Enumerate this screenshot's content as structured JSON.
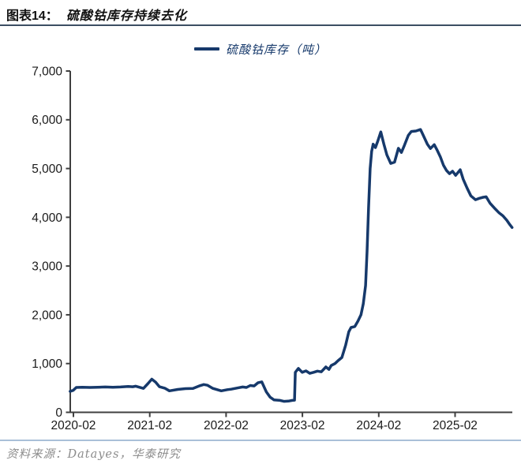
{
  "header": {
    "label": "图表14：",
    "title": "硫酸钴库存持续去化"
  },
  "legend": {
    "label": "硫酸钴库存（吨）"
  },
  "footer": {
    "source": "资料来源：Datayes，华泰研究"
  },
  "colors": {
    "line": "#16396b",
    "axis": "#3f3f3f",
    "tick_label": "#1a1a1a",
    "title_rule": "#3c4e63",
    "footer_rule": "#a9c0d8",
    "source_text": "#8c8c8c"
  },
  "chart_data": {
    "type": "line",
    "title": "硫酸钴库存持续去化",
    "legend": "硫酸钴库存（吨）",
    "unit": "吨",
    "grid": false,
    "legend_position": "top-center",
    "ylim": [
      0,
      7000
    ],
    "y_ticks": [
      {
        "value": 0,
        "label": "0"
      },
      {
        "value": 1000,
        "label": "1,000"
      },
      {
        "value": 2000,
        "label": "2,000"
      },
      {
        "value": 3000,
        "label": "3,000"
      },
      {
        "value": 4000,
        "label": "4,000"
      },
      {
        "value": 5000,
        "label": "5,000"
      },
      {
        "value": 6000,
        "label": "6,000"
      },
      {
        "value": 7000,
        "label": "7,000"
      }
    ],
    "x_ticks": [
      {
        "year": 2020.083,
        "label": "2020-02"
      },
      {
        "year": 2021.083,
        "label": "2021-02"
      },
      {
        "year": 2022.083,
        "label": "2022-02"
      },
      {
        "year": 2023.083,
        "label": "2023-02"
      },
      {
        "year": 2024.083,
        "label": "2024-02"
      },
      {
        "year": 2025.083,
        "label": "2025-02"
      }
    ],
    "series": [
      {
        "name": "硫酸钴库存（吨）",
        "points": [
          [
            2020.04,
            430
          ],
          [
            2020.08,
            450
          ],
          [
            2020.12,
            510
          ],
          [
            2020.2,
            515
          ],
          [
            2020.3,
            510
          ],
          [
            2020.4,
            515
          ],
          [
            2020.5,
            520
          ],
          [
            2020.6,
            515
          ],
          [
            2020.7,
            520
          ],
          [
            2020.8,
            530
          ],
          [
            2020.86,
            525
          ],
          [
            2020.9,
            535
          ],
          [
            2021.0,
            490
          ],
          [
            2021.06,
            590
          ],
          [
            2021.11,
            680
          ],
          [
            2021.16,
            620
          ],
          [
            2021.21,
            525
          ],
          [
            2021.28,
            495
          ],
          [
            2021.34,
            440
          ],
          [
            2021.45,
            470
          ],
          [
            2021.55,
            485
          ],
          [
            2021.65,
            490
          ],
          [
            2021.74,
            545
          ],
          [
            2021.79,
            570
          ],
          [
            2021.84,
            555
          ],
          [
            2021.91,
            490
          ],
          [
            2022.02,
            440
          ],
          [
            2022.1,
            465
          ],
          [
            2022.15,
            475
          ],
          [
            2022.25,
            505
          ],
          [
            2022.3,
            520
          ],
          [
            2022.35,
            510
          ],
          [
            2022.4,
            550
          ],
          [
            2022.45,
            540
          ],
          [
            2022.5,
            605
          ],
          [
            2022.55,
            625
          ],
          [
            2022.61,
            420
          ],
          [
            2022.66,
            310
          ],
          [
            2022.71,
            255
          ],
          [
            2022.79,
            245
          ],
          [
            2022.84,
            225
          ],
          [
            2022.9,
            230
          ],
          [
            2022.95,
            245
          ],
          [
            2022.98,
            250
          ],
          [
            2022.99,
            820
          ],
          [
            2023.03,
            900
          ],
          [
            2023.08,
            820
          ],
          [
            2023.13,
            850
          ],
          [
            2023.18,
            800
          ],
          [
            2023.23,
            820
          ],
          [
            2023.28,
            845
          ],
          [
            2023.33,
            830
          ],
          [
            2023.39,
            930
          ],
          [
            2023.43,
            880
          ],
          [
            2023.46,
            960
          ],
          [
            2023.51,
            1000
          ],
          [
            2023.55,
            1060
          ],
          [
            2023.6,
            1125
          ],
          [
            2023.65,
            1380
          ],
          [
            2023.69,
            1650
          ],
          [
            2023.72,
            1740
          ],
          [
            2023.77,
            1760
          ],
          [
            2023.81,
            1870
          ],
          [
            2023.85,
            2000
          ],
          [
            2023.88,
            2225
          ],
          [
            2023.91,
            2600
          ],
          [
            2023.93,
            3300
          ],
          [
            2023.95,
            4200
          ],
          [
            2023.97,
            5000
          ],
          [
            2023.99,
            5350
          ],
          [
            2024.01,
            5500
          ],
          [
            2024.04,
            5430
          ],
          [
            2024.07,
            5560
          ],
          [
            2024.11,
            5750
          ],
          [
            2024.15,
            5500
          ],
          [
            2024.19,
            5280
          ],
          [
            2024.24,
            5105
          ],
          [
            2024.29,
            5130
          ],
          [
            2024.34,
            5415
          ],
          [
            2024.38,
            5330
          ],
          [
            2024.42,
            5480
          ],
          [
            2024.47,
            5680
          ],
          [
            2024.51,
            5760
          ],
          [
            2024.57,
            5770
          ],
          [
            2024.63,
            5800
          ],
          [
            2024.66,
            5700
          ],
          [
            2024.72,
            5500
          ],
          [
            2024.76,
            5410
          ],
          [
            2024.81,
            5490
          ],
          [
            2024.85,
            5370
          ],
          [
            2024.89,
            5240
          ],
          [
            2024.93,
            5070
          ],
          [
            2024.97,
            4960
          ],
          [
            2025.01,
            4895
          ],
          [
            2025.05,
            4945
          ],
          [
            2025.09,
            4860
          ],
          [
            2025.15,
            4975
          ],
          [
            2025.19,
            4780
          ],
          [
            2025.24,
            4600
          ],
          [
            2025.29,
            4440
          ],
          [
            2025.35,
            4360
          ],
          [
            2025.4,
            4390
          ],
          [
            2025.45,
            4410
          ],
          [
            2025.49,
            4420
          ],
          [
            2025.54,
            4290
          ],
          [
            2025.61,
            4170
          ],
          [
            2025.66,
            4090
          ],
          [
            2025.71,
            4030
          ],
          [
            2025.76,
            3940
          ],
          [
            2025.8,
            3850
          ],
          [
            2025.83,
            3790
          ]
        ]
      }
    ]
  }
}
